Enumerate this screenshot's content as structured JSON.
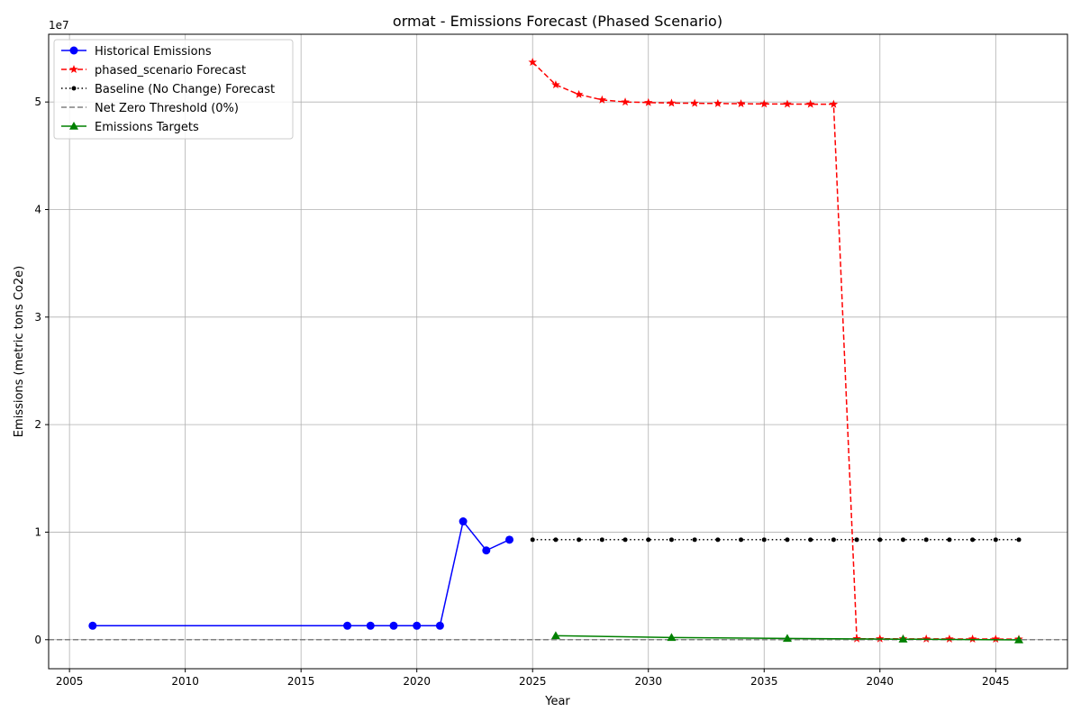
{
  "chart_data": {
    "type": "line",
    "title": "ormat - Emissions Forecast (Phased Scenario)",
    "xlabel": "Year",
    "ylabel": "Emissions (metric tons Co2e)",
    "y_offset_label": "1e7",
    "xlim": [
      2004.1,
      2048.1
    ],
    "ylim": [
      -2700000,
      56300000
    ],
    "x_ticks": [
      2005,
      2010,
      2015,
      2020,
      2025,
      2030,
      2035,
      2040,
      2045
    ],
    "y_ticks": [
      0,
      10000000,
      20000000,
      30000000,
      40000000,
      50000000
    ],
    "y_tick_labels": [
      "0",
      "1",
      "2",
      "3",
      "4",
      "5"
    ],
    "grid": true,
    "legend_position": "top-left",
    "series": [
      {
        "name": "Historical Emissions",
        "color": "#0000ff",
        "line_style": "solid",
        "marker": "circle",
        "x": [
          2006,
          2017,
          2018,
          2019,
          2020,
          2021,
          2022,
          2023,
          2024
        ],
        "y": [
          1300000,
          1300000,
          1300000,
          1300000,
          1300000,
          1300000,
          11000000,
          8300000,
          9300000
        ]
      },
      {
        "name": "phased_scenario Forecast",
        "color": "#ff0000",
        "line_style": "dashed",
        "marker": "star",
        "x": [
          2025,
          2026,
          2027,
          2028,
          2029,
          2030,
          2031,
          2032,
          2033,
          2034,
          2035,
          2036,
          2037,
          2038,
          2039,
          2040,
          2041,
          2042,
          2043,
          2044,
          2045,
          2046
        ],
        "y": [
          53700000,
          51600000,
          50700000,
          50200000,
          50000000,
          49950000,
          49900000,
          49880000,
          49860000,
          49840000,
          49820000,
          49810000,
          49800000,
          49790000,
          90000,
          85000,
          80000,
          75000,
          70000,
          65000,
          60000,
          55000
        ]
      },
      {
        "name": "Baseline (No Change) Forecast",
        "color": "#000000",
        "line_style": "dotted",
        "marker": "point",
        "x": [
          2025,
          2026,
          2027,
          2028,
          2029,
          2030,
          2031,
          2032,
          2033,
          2034,
          2035,
          2036,
          2037,
          2038,
          2039,
          2040,
          2041,
          2042,
          2043,
          2044,
          2045,
          2046
        ],
        "y": [
          9300000,
          9300000,
          9300000,
          9300000,
          9300000,
          9300000,
          9300000,
          9300000,
          9300000,
          9300000,
          9300000,
          9300000,
          9300000,
          9300000,
          9300000,
          9300000,
          9300000,
          9300000,
          9300000,
          9300000,
          9300000,
          9300000
        ]
      },
      {
        "name": "Net Zero Threshold (0%)",
        "color": "#808080",
        "line_style": "dashed",
        "marker": "none",
        "hline": 0
      },
      {
        "name": "Emissions Targets",
        "color": "#008000",
        "line_style": "solid",
        "marker": "triangle",
        "x": [
          2026,
          2031,
          2036,
          2041,
          2046
        ],
        "y": [
          370000,
          200000,
          120000,
          50000,
          -20000
        ]
      }
    ]
  }
}
